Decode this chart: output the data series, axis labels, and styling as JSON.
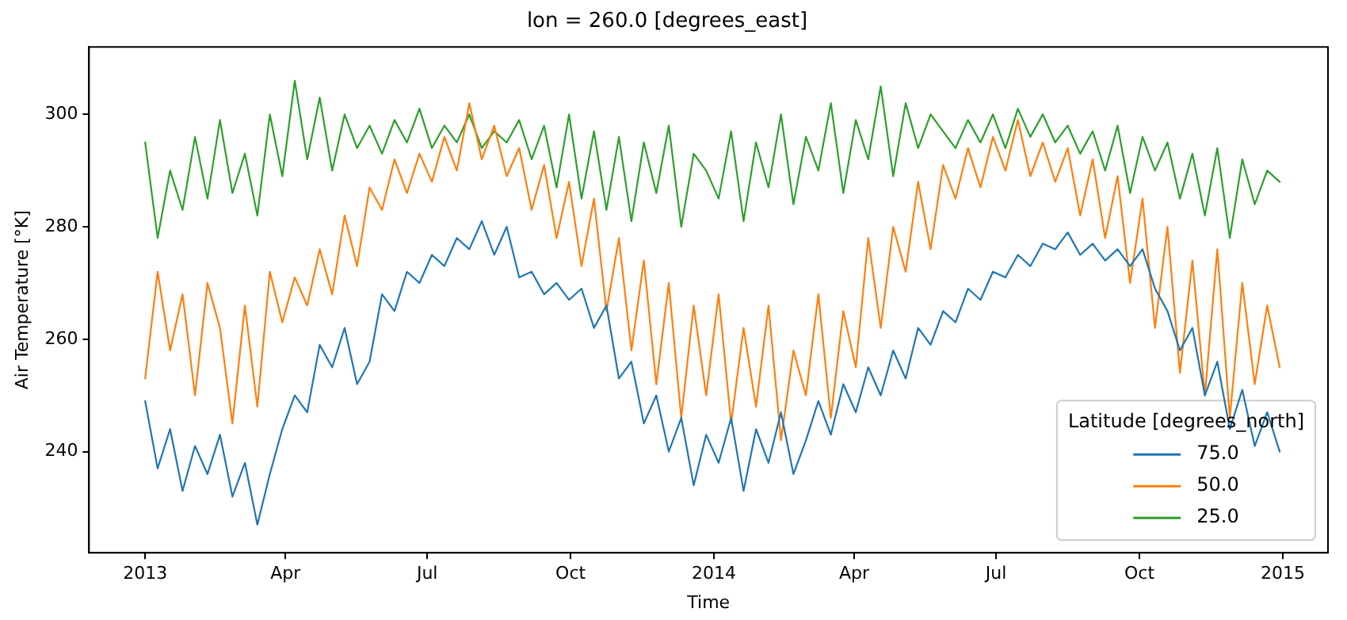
{
  "chart_data": {
    "type": "line",
    "title": "lon = 260.0 [degrees_east]",
    "xlabel": "Time",
    "ylabel": "Air Temperature [°K]",
    "legend_title": "Latitude [degrees_north]",
    "legend": "bottom right",
    "grid": false,
    "marker": "none",
    "line_style": "solid",
    "xlim": [
      "2012-11-26",
      "2015-01-30"
    ],
    "ylim": [
      222,
      312
    ],
    "xticks": [
      {
        "value": "2013-01-01",
        "label": "2013"
      },
      {
        "value": "2013-04-01",
        "label": "Apr"
      },
      {
        "value": "2013-07-01",
        "label": "Jul"
      },
      {
        "value": "2013-10-01",
        "label": "Oct"
      },
      {
        "value": "2014-01-01",
        "label": "2014"
      },
      {
        "value": "2014-04-01",
        "label": "Apr"
      },
      {
        "value": "2014-07-01",
        "label": "Jul"
      },
      {
        "value": "2014-10-01",
        "label": "Oct"
      },
      {
        "value": "2015-01-01",
        "label": "2015"
      }
    ],
    "yticks": [
      240,
      260,
      280,
      300
    ],
    "x": [
      "2013-01-01",
      "2013-01-09",
      "2013-01-17",
      "2013-01-25",
      "2013-02-02",
      "2013-02-10",
      "2013-02-18",
      "2013-02-26",
      "2013-03-06",
      "2013-03-14",
      "2013-03-22",
      "2013-03-30",
      "2013-04-07",
      "2013-04-15",
      "2013-04-23",
      "2013-05-01",
      "2013-05-09",
      "2013-05-17",
      "2013-05-25",
      "2013-06-02",
      "2013-06-10",
      "2013-06-18",
      "2013-06-26",
      "2013-07-04",
      "2013-07-12",
      "2013-07-20",
      "2013-07-28",
      "2013-08-05",
      "2013-08-13",
      "2013-08-21",
      "2013-08-29",
      "2013-09-06",
      "2013-09-14",
      "2013-09-22",
      "2013-09-30",
      "2013-10-08",
      "2013-10-16",
      "2013-10-24",
      "2013-11-01",
      "2013-11-09",
      "2013-11-17",
      "2013-11-25",
      "2013-12-03",
      "2013-12-11",
      "2013-12-19",
      "2013-12-27",
      "2014-01-04",
      "2014-01-12",
      "2014-01-20",
      "2014-01-28",
      "2014-02-05",
      "2014-02-13",
      "2014-02-21",
      "2014-03-01",
      "2014-03-09",
      "2014-03-17",
      "2014-03-25",
      "2014-04-02",
      "2014-04-10",
      "2014-04-18",
      "2014-04-26",
      "2014-05-04",
      "2014-05-12",
      "2014-05-20",
      "2014-05-28",
      "2014-06-05",
      "2014-06-13",
      "2014-06-21",
      "2014-06-29",
      "2014-07-07",
      "2014-07-15",
      "2014-07-23",
      "2014-07-31",
      "2014-08-08",
      "2014-08-16",
      "2014-08-24",
      "2014-09-01",
      "2014-09-09",
      "2014-09-17",
      "2014-09-25",
      "2014-10-03",
      "2014-10-11",
      "2014-10-19",
      "2014-10-27",
      "2014-11-04",
      "2014-11-12",
      "2014-11-20",
      "2014-11-28",
      "2014-12-06",
      "2014-12-14",
      "2014-12-22",
      "2014-12-30"
    ],
    "series": [
      {
        "name": "75.0",
        "color": "#1f77b4",
        "values": [
          249,
          237,
          244,
          233,
          241,
          236,
          243,
          232,
          238,
          227,
          236,
          244,
          250,
          247,
          259,
          255,
          262,
          252,
          256,
          268,
          265,
          272,
          270,
          275,
          273,
          278,
          276,
          281,
          275,
          280,
          271,
          272,
          268,
          270,
          267,
          269,
          262,
          266,
          253,
          256,
          245,
          250,
          240,
          246,
          234,
          243,
          238,
          246,
          233,
          244,
          238,
          247,
          236,
          242,
          249,
          243,
          252,
          247,
          255,
          250,
          258,
          253,
          262,
          259,
          265,
          263,
          269,
          267,
          272,
          271,
          275,
          273,
          277,
          276,
          279,
          275,
          277,
          274,
          276,
          273,
          276,
          269,
          265,
          258,
          262,
          250,
          256,
          244,
          251,
          241,
          247,
          240
        ]
      },
      {
        "name": "50.0",
        "color": "#ff7f0e",
        "values": [
          253,
          272,
          258,
          268,
          250,
          270,
          262,
          245,
          266,
          248,
          272,
          263,
          271,
          266,
          276,
          268,
          282,
          273,
          287,
          283,
          292,
          286,
          293,
          288,
          296,
          290,
          302,
          292,
          298,
          289,
          294,
          283,
          291,
          278,
          288,
          273,
          285,
          265,
          278,
          258,
          274,
          252,
          270,
          246,
          266,
          250,
          268,
          245,
          262,
          248,
          266,
          242,
          258,
          250,
          268,
          246,
          265,
          255,
          278,
          262,
          280,
          272,
          288,
          276,
          291,
          285,
          294,
          287,
          296,
          290,
          299,
          289,
          295,
          288,
          294,
          282,
          292,
          278,
          289,
          270,
          285,
          262,
          280,
          254,
          274,
          250,
          276,
          246,
          270,
          252,
          266,
          255
        ]
      },
      {
        "name": "25.0",
        "color": "#2ca02c",
        "values": [
          295,
          278,
          290,
          283,
          296,
          285,
          299,
          286,
          293,
          282,
          300,
          289,
          306,
          292,
          303,
          290,
          300,
          294,
          298,
          293,
          299,
          295,
          301,
          294,
          298,
          295,
          300,
          294,
          297,
          295,
          299,
          292,
          298,
          287,
          300,
          285,
          297,
          283,
          296,
          281,
          295,
          286,
          298,
          280,
          293,
          290,
          285,
          297,
          281,
          295,
          287,
          300,
          284,
          296,
          290,
          302,
          286,
          299,
          292,
          305,
          289,
          302,
          294,
          300,
          297,
          294,
          299,
          295,
          300,
          294,
          301,
          296,
          300,
          295,
          298,
          293,
          297,
          290,
          298,
          286,
          296,
          290,
          295,
          285,
          293,
          282,
          294,
          278,
          292,
          284,
          290,
          288
        ]
      }
    ]
  }
}
